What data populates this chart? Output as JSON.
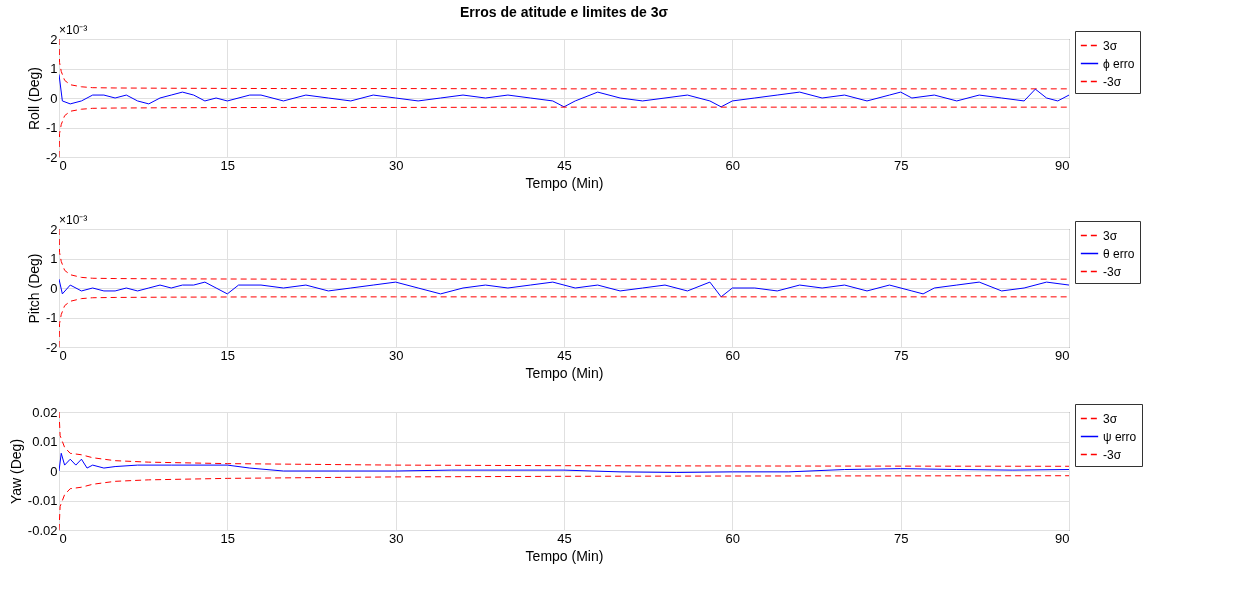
{
  "chart_data": [
    {
      "type": "line",
      "title": "Erros de atitude e limites de 3σ",
      "xlabel": "Tempo (Min)",
      "ylabel": "Roll (Deg)",
      "annotations": [
        "×10⁻³"
      ],
      "xlim": [
        0,
        90
      ],
      "xticks": [
        0,
        15,
        30,
        45,
        60,
        75,
        90
      ],
      "ylim": [
        -2,
        2
      ],
      "yticks": [
        -2,
        -1,
        0,
        1,
        2
      ],
      "grid": true,
      "legend": "top right",
      "series": [
        {
          "name": "3σ",
          "color": "#ff0000",
          "line_style": "dashed",
          "x": [
            0,
            0.05,
            0.2,
            0.5,
            1,
            2,
            3,
            5,
            10,
            20,
            30,
            45,
            60,
            75,
            90
          ],
          "values": [
            2,
            1.2,
            0.9,
            0.6,
            0.45,
            0.38,
            0.35,
            0.34,
            0.33,
            0.32,
            0.32,
            0.31,
            0.31,
            0.31,
            0.31
          ]
        },
        {
          "name": "ϕ erro",
          "color": "#0000ff",
          "line_style": "solid",
          "x": [
            0,
            0.3,
            1,
            2,
            3,
            4,
            5,
            6,
            7,
            8,
            9,
            10,
            11,
            12,
            13,
            14,
            15,
            17,
            18,
            20,
            22,
            24,
            26,
            28,
            30,
            32,
            34,
            36,
            38,
            40,
            42,
            44,
            45,
            46,
            48,
            50,
            52,
            54,
            56,
            58,
            59,
            60,
            62,
            64,
            66,
            68,
            70,
            72,
            74,
            75,
            76,
            78,
            80,
            82,
            84,
            86,
            87,
            88,
            89,
            90
          ],
          "values": [
            0.8,
            -0.1,
            -0.2,
            -0.1,
            0.1,
            0.1,
            0,
            0.1,
            -0.1,
            -0.2,
            0,
            0.1,
            0.2,
            0.1,
            -0.1,
            0,
            -0.1,
            0.1,
            0.1,
            -0.1,
            0.1,
            0,
            -0.1,
            0.1,
            0,
            -0.1,
            0,
            0.1,
            0,
            0.1,
            0,
            -0.1,
            -0.3,
            -0.1,
            0.2,
            0,
            -0.1,
            0,
            0.1,
            -0.1,
            -0.3,
            -0.1,
            0,
            0.1,
            0.2,
            0,
            0.1,
            -0.1,
            0.1,
            0.2,
            0,
            0.1,
            -0.1,
            0.1,
            0,
            -0.1,
            0.3,
            0,
            -0.1,
            0.1
          ]
        },
        {
          "name": "-3σ",
          "color": "#ff0000",
          "line_style": "dashed",
          "x": [
            0,
            0.05,
            0.2,
            0.5,
            1,
            2,
            3,
            5,
            10,
            20,
            30,
            45,
            60,
            75,
            90
          ],
          "values": [
            -2,
            -1.2,
            -0.9,
            -0.6,
            -0.45,
            -0.38,
            -0.35,
            -0.34,
            -0.33,
            -0.32,
            -0.32,
            -0.31,
            -0.31,
            -0.31,
            -0.31
          ]
        }
      ]
    },
    {
      "type": "line",
      "xlabel": "Tempo (Min)",
      "ylabel": "Pitch (Deg)",
      "annotations": [
        "×10⁻³"
      ],
      "xlim": [
        0,
        90
      ],
      "xticks": [
        0,
        15,
        30,
        45,
        60,
        75,
        90
      ],
      "ylim": [
        -2,
        2
      ],
      "yticks": [
        -2,
        -1,
        0,
        1,
        2
      ],
      "grid": true,
      "legend": "top right",
      "series": [
        {
          "name": "3σ",
          "color": "#ff0000",
          "line_style": "dashed",
          "x": [
            0,
            0.05,
            0.2,
            0.5,
            1,
            2,
            3,
            5,
            10,
            20,
            30,
            45,
            60,
            75,
            90
          ],
          "values": [
            2,
            1.2,
            0.9,
            0.6,
            0.45,
            0.36,
            0.33,
            0.32,
            0.31,
            0.3,
            0.3,
            0.3,
            0.3,
            0.3,
            0.3
          ]
        },
        {
          "name": "θ erro",
          "color": "#0000ff",
          "line_style": "solid",
          "x": [
            0,
            0.3,
            1,
            2,
            3,
            4,
            5,
            6,
            7,
            8,
            9,
            10,
            11,
            12,
            13,
            14,
            15,
            16,
            18,
            20,
            22,
            24,
            26,
            28,
            30,
            32,
            34,
            36,
            38,
            40,
            42,
            44,
            46,
            48,
            50,
            52,
            54,
            56,
            58,
            59,
            60,
            62,
            64,
            66,
            68,
            70,
            72,
            74,
            76,
            77,
            78,
            80,
            82,
            84,
            86,
            88,
            90
          ],
          "values": [
            0.3,
            -0.2,
            0.1,
            -0.1,
            0,
            -0.1,
            -0.1,
            0,
            -0.1,
            0,
            0.1,
            0,
            0.1,
            0.1,
            0.2,
            0,
            -0.2,
            0.1,
            0.1,
            0,
            0.1,
            -0.1,
            0,
            0.1,
            0.2,
            0,
            -0.2,
            0,
            0.1,
            0,
            0.1,
            0.2,
            0,
            0.1,
            -0.1,
            0,
            0.1,
            -0.1,
            0.2,
            -0.3,
            0,
            0,
            -0.1,
            0.1,
            0,
            0.1,
            -0.1,
            0.1,
            -0.1,
            -0.2,
            0,
            0.1,
            0.2,
            -0.1,
            0,
            0.2,
            0.1
          ]
        },
        {
          "name": "-3σ",
          "color": "#ff0000",
          "line_style": "dashed",
          "x": [
            0,
            0.05,
            0.2,
            0.5,
            1,
            2,
            3,
            5,
            10,
            20,
            30,
            45,
            60,
            75,
            90
          ],
          "values": [
            -2,
            -1.2,
            -0.9,
            -0.6,
            -0.45,
            -0.36,
            -0.33,
            -0.32,
            -0.31,
            -0.3,
            -0.3,
            -0.3,
            -0.3,
            -0.3,
            -0.3
          ]
        }
      ]
    },
    {
      "type": "line",
      "xlabel": "Tempo (Min)",
      "ylabel": "Yaw (Deg)",
      "xlim": [
        0,
        90
      ],
      "xticks": [
        0,
        15,
        30,
        45,
        60,
        75,
        90
      ],
      "ylim": [
        -0.02,
        0.02
      ],
      "yticks": [
        -0.02,
        -0.01,
        0,
        0.01,
        0.02
      ],
      "grid": true,
      "legend": "top right",
      "series": [
        {
          "name": "3σ",
          "color": "#ff0000",
          "line_style": "dashed",
          "x": [
            0,
            0.1,
            0.5,
            1,
            2,
            3,
            5,
            8,
            15,
            30,
            45,
            60,
            90
          ],
          "values": [
            0.02,
            0.012,
            0.008,
            0.006,
            0.0055,
            0.0045,
            0.0035,
            0.003,
            0.0025,
            0.002,
            0.0018,
            0.0017,
            0.0016
          ]
        },
        {
          "name": "ψ erro",
          "color": "#0000ff",
          "line_style": "solid",
          "x": [
            0,
            0.2,
            0.5,
            1,
            1.5,
            2,
            2.5,
            3,
            4,
            5,
            7,
            10,
            15,
            17,
            20,
            25,
            30,
            35,
            40,
            45,
            50,
            55,
            60,
            65,
            70,
            75,
            80,
            85,
            90
          ],
          "values": [
            0,
            0.006,
            0.002,
            0.004,
            0.002,
            0.004,
            0.001,
            0.002,
            0.001,
            0.0015,
            0.002,
            0.002,
            0.002,
            0.001,
            0,
            0,
            0,
            0.0003,
            0.0003,
            0.0003,
            -0.0003,
            -0.0005,
            -0.0003,
            -0.0003,
            0.0005,
            0.0008,
            0.0005,
            0.0003,
            0.0005
          ]
        },
        {
          "name": "-3σ",
          "color": "#ff0000",
          "line_style": "dashed",
          "x": [
            0,
            0.1,
            0.5,
            1,
            2,
            3,
            5,
            8,
            15,
            30,
            45,
            60,
            90
          ],
          "values": [
            -0.02,
            -0.012,
            -0.008,
            -0.006,
            -0.0055,
            -0.0045,
            -0.0035,
            -0.003,
            -0.0025,
            -0.002,
            -0.0018,
            -0.0017,
            -0.0016
          ]
        }
      ]
    }
  ]
}
